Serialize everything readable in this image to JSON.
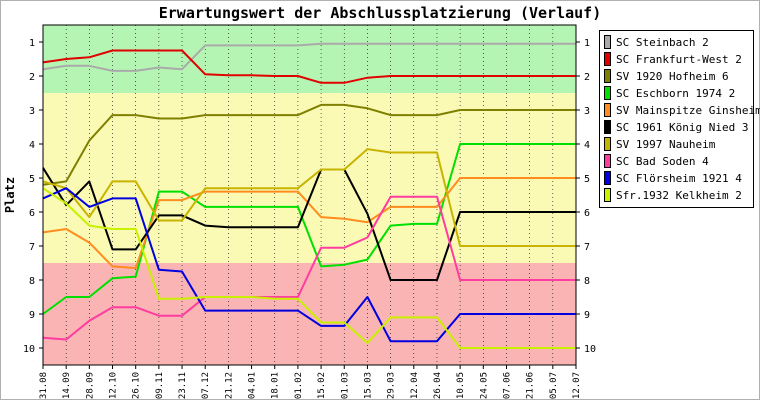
{
  "title": "Erwartungswert der Abschlussplatzierung (Verlauf)",
  "chart_data": {
    "type": "line",
    "ylabel": "Platz",
    "xlabel": "",
    "ylim": [
      0.5,
      10.5
    ],
    "y_inverted": true,
    "y_ticks": [
      1,
      2,
      3,
      4,
      5,
      6,
      7,
      8,
      9,
      10
    ],
    "bands": [
      {
        "from": 0.5,
        "to": 2.5,
        "color": "#b4f5b4"
      },
      {
        "from": 2.5,
        "to": 7.5,
        "color": "#fafab4"
      },
      {
        "from": 7.5,
        "to": 10.5,
        "color": "#fab4b4"
      }
    ],
    "categories": [
      "31.08",
      "14.09",
      "28.09",
      "12.10",
      "26.10",
      "09.11",
      "23.11",
      "07.12",
      "21.12",
      "04.01",
      "18.01",
      "01.02",
      "15.02",
      "01.03",
      "15.03",
      "29.03",
      "12.04",
      "26.04",
      "10.05",
      "24.05",
      "07.06",
      "21.06",
      "05.07",
      "12.07"
    ],
    "series": [
      {
        "name": "SC Steinbach 2",
        "color": "#aaaaaa",
        "values": [
          1.8,
          1.7,
          1.7,
          1.85,
          1.85,
          1.75,
          1.8,
          1.1,
          1.1,
          1.1,
          1.1,
          1.1,
          1.05,
          1.05,
          1.05,
          1.05,
          1.05,
          1.05,
          1.05,
          1.05,
          1.05,
          1.05,
          1.05,
          1.05
        ]
      },
      {
        "name": "SC Frankfurt-West 2",
        "color": "#e00000",
        "values": [
          1.6,
          1.5,
          1.45,
          1.25,
          1.25,
          1.25,
          1.25,
          1.95,
          1.98,
          1.98,
          2.0,
          2.0,
          2.2,
          2.2,
          2.05,
          2.0,
          2.0,
          2.0,
          2.0,
          2.0,
          2.0,
          2.0,
          2.0,
          2.0
        ]
      },
      {
        "name": "SV 1920 Hofheim 6",
        "color": "#808000",
        "values": [
          5.2,
          5.1,
          3.9,
          3.15,
          3.15,
          3.25,
          3.25,
          3.15,
          3.15,
          3.15,
          3.15,
          3.15,
          2.85,
          2.85,
          2.95,
          3.15,
          3.15,
          3.15,
          3.0,
          3.0,
          3.0,
          3.0,
          3.0,
          3.0
        ]
      },
      {
        "name": "SC Eschborn 1974 2",
        "color": "#00e000",
        "values": [
          9.0,
          8.5,
          8.5,
          7.95,
          7.9,
          5.4,
          5.4,
          5.85,
          5.85,
          5.85,
          5.85,
          5.85,
          7.6,
          7.55,
          7.4,
          6.4,
          6.35,
          6.35,
          4.0,
          4.0,
          4.0,
          4.0,
          4.0,
          4.0
        ]
      },
      {
        "name": "SV Mainspitze Ginsheim",
        "color": "#ff8c1e",
        "values": [
          6.6,
          6.5,
          6.9,
          7.6,
          7.65,
          5.65,
          5.65,
          5.4,
          5.4,
          5.4,
          5.4,
          5.4,
          6.15,
          6.2,
          6.3,
          5.85,
          5.85,
          5.85,
          5.0,
          5.0,
          5.0,
          5.0,
          5.0,
          5.0
        ]
      },
      {
        "name": "SC 1961 König Nied 3",
        "color": "#000000",
        "values": [
          4.7,
          5.8,
          5.1,
          7.1,
          7.1,
          6.1,
          6.1,
          6.4,
          6.45,
          6.45,
          6.45,
          6.45,
          4.75,
          4.75,
          6.05,
          8.0,
          8.0,
          8.0,
          6.0,
          6.0,
          6.0,
          6.0,
          6.0,
          6.0
        ]
      },
      {
        "name": "SV 1997 Nauheim",
        "color": "#c8b400",
        "values": [
          5.1,
          5.3,
          6.15,
          5.1,
          5.1,
          6.25,
          6.25,
          5.3,
          5.3,
          5.3,
          5.3,
          5.3,
          4.75,
          4.75,
          4.15,
          4.25,
          4.25,
          4.25,
          7.0,
          7.0,
          7.0,
          7.0,
          7.0,
          7.0
        ]
      },
      {
        "name": "SC Bad Soden 4",
        "color": "#ff3ca0",
        "values": [
          9.7,
          9.75,
          9.2,
          8.8,
          8.8,
          9.05,
          9.05,
          8.5,
          8.5,
          8.5,
          8.5,
          8.5,
          7.05,
          7.05,
          6.75,
          5.55,
          5.55,
          5.55,
          8.0,
          8.0,
          8.0,
          8.0,
          8.0,
          8.0
        ]
      },
      {
        "name": "SC Flörsheim 1921 4",
        "color": "#0000e0",
        "values": [
          5.6,
          5.3,
          5.85,
          5.6,
          5.6,
          7.7,
          7.75,
          8.9,
          8.9,
          8.9,
          8.9,
          8.9,
          9.35,
          9.35,
          8.5,
          9.8,
          9.8,
          9.8,
          9.0,
          9.0,
          9.0,
          9.0,
          9.0,
          9.0
        ]
      },
      {
        "name": "Sfr.1932 Kelkheim 2",
        "color": "#c8f000",
        "values": [
          5.3,
          5.75,
          6.4,
          6.5,
          6.5,
          8.55,
          8.55,
          8.5,
          8.5,
          8.5,
          8.55,
          8.55,
          9.25,
          9.25,
          9.85,
          9.1,
          9.1,
          9.1,
          10.0,
          10.0,
          10.0,
          10.0,
          10.0,
          10.0
        ]
      }
    ]
  }
}
